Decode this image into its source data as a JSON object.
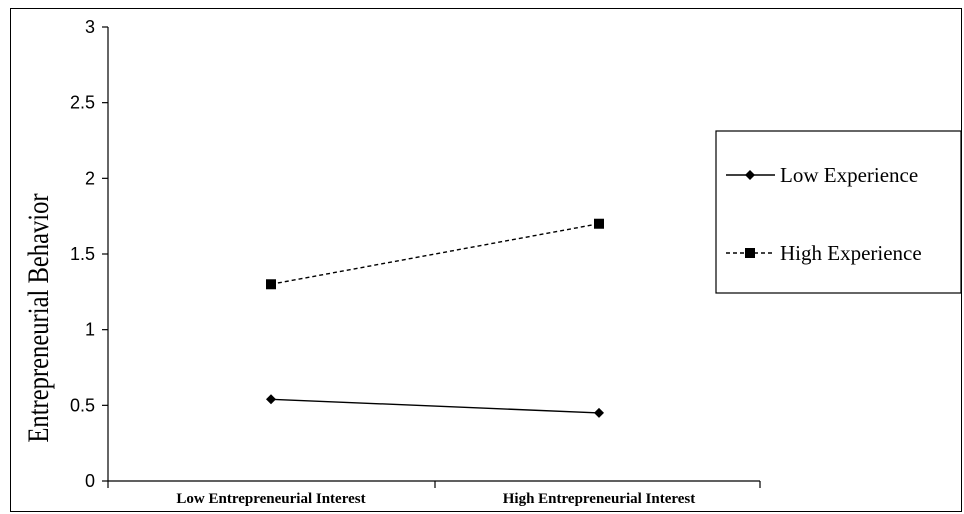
{
  "chart_data": {
    "type": "line",
    "categories": [
      "Low Entrepreneurial Interest",
      "High Entrepreneurial Interest"
    ],
    "series": [
      {
        "name": "Low Experience",
        "values": [
          0.54,
          0.45
        ],
        "marker": "diamond",
        "line": "solid",
        "color": "#000000"
      },
      {
        "name": "High Experience",
        "values": [
          1.3,
          1.7
        ],
        "marker": "square",
        "line": "dashed",
        "color": "#000000"
      }
    ],
    "title": "",
    "xlabel": "",
    "ylabel": "Entrepreneurial Behavior",
    "ylim": [
      0,
      3
    ],
    "yticks": [
      "0",
      "0.5",
      "1",
      "1.5",
      "2",
      "2.5",
      "3"
    ],
    "grid": false,
    "legend": "right"
  }
}
